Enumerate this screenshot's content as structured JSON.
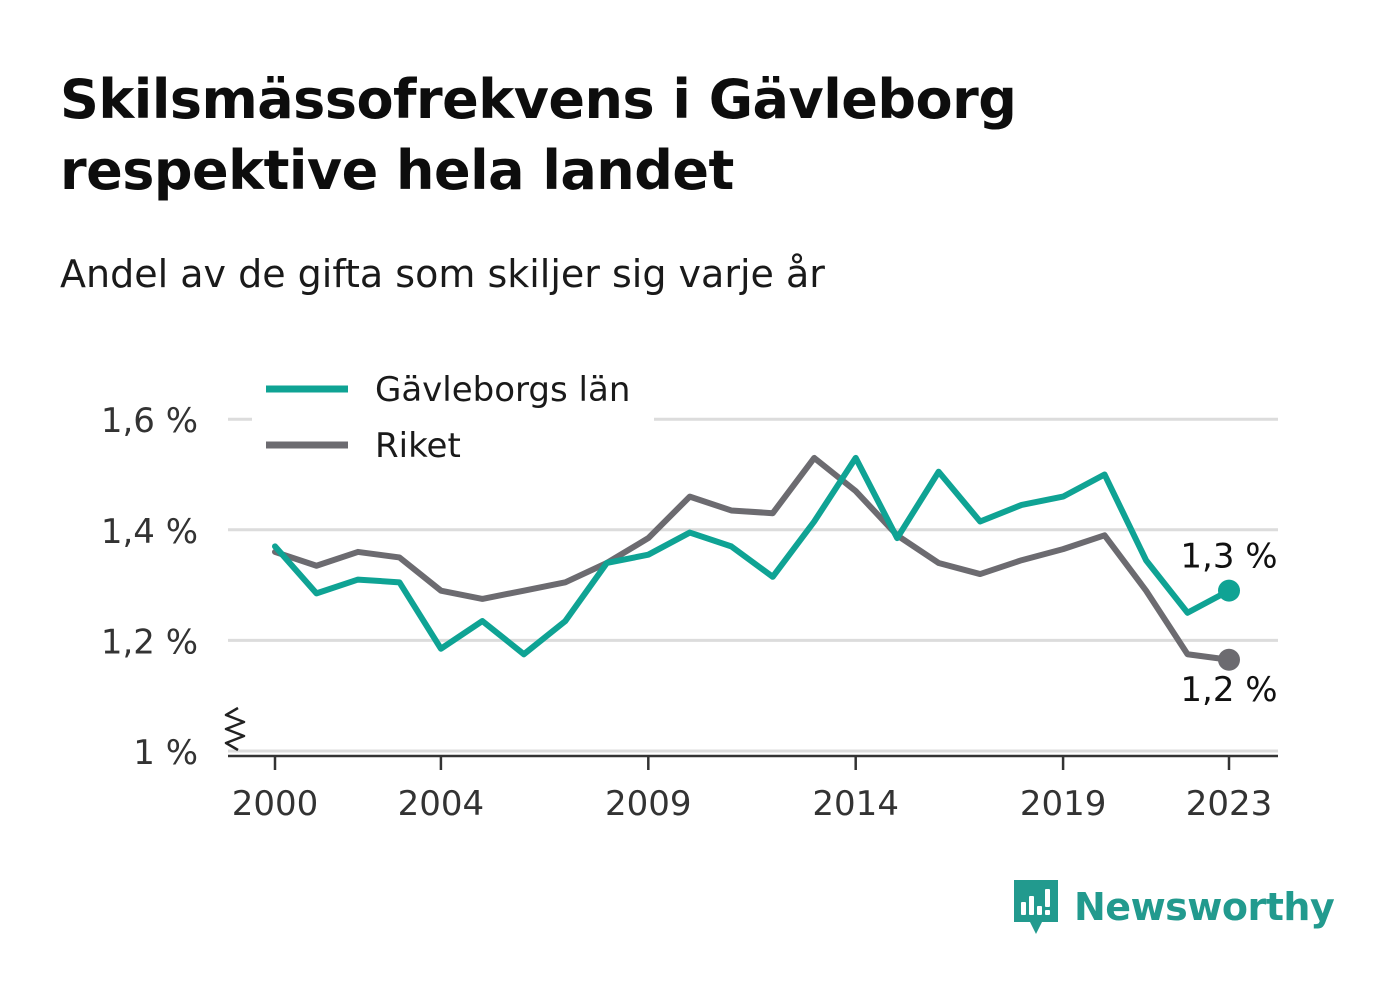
{
  "title_lines": [
    "Skilsmässofrekvens i Gävleborg",
    "respektive hela landet"
  ],
  "subtitle": "Andel av de gifta som skiljer sig varje år",
  "brand": "Newsworthy",
  "chart_data": {
    "type": "line",
    "x": [
      2000,
      2001,
      2002,
      2003,
      2004,
      2005,
      2006,
      2007,
      2008,
      2009,
      2010,
      2011,
      2012,
      2013,
      2014,
      2015,
      2016,
      2017,
      2018,
      2019,
      2020,
      2021,
      2022,
      2023
    ],
    "xticks": [
      2000,
      2004,
      2009,
      2014,
      2019,
      2023
    ],
    "yticks": [
      {
        "value": 1.0,
        "label": "1 %"
      },
      {
        "value": 1.2,
        "label": "1,2 %"
      },
      {
        "value": 1.4,
        "label": "1,4 %"
      },
      {
        "value": 1.6,
        "label": "1,6 %"
      }
    ],
    "ylim": [
      1.0,
      1.63
    ],
    "grid": true,
    "legend_position": "top-left",
    "series": [
      {
        "name": "Gävleborgs län",
        "color": "#0fa394",
        "values": [
          1.37,
          1.285,
          1.31,
          1.305,
          1.185,
          1.235,
          1.175,
          1.235,
          1.34,
          1.355,
          1.395,
          1.37,
          1.315,
          1.415,
          1.53,
          1.385,
          1.505,
          1.415,
          1.445,
          1.46,
          1.5,
          1.345,
          1.25,
          1.29
        ],
        "end_label": "1,3 %"
      },
      {
        "name": "Riket",
        "color": "#6c6b70",
        "values": [
          1.36,
          1.335,
          1.36,
          1.35,
          1.29,
          1.275,
          1.29,
          1.305,
          1.34,
          1.385,
          1.46,
          1.435,
          1.43,
          1.53,
          1.47,
          1.39,
          1.34,
          1.32,
          1.345,
          1.365,
          1.39,
          1.29,
          1.175,
          1.165
        ],
        "end_label": "1,2 %"
      }
    ]
  }
}
